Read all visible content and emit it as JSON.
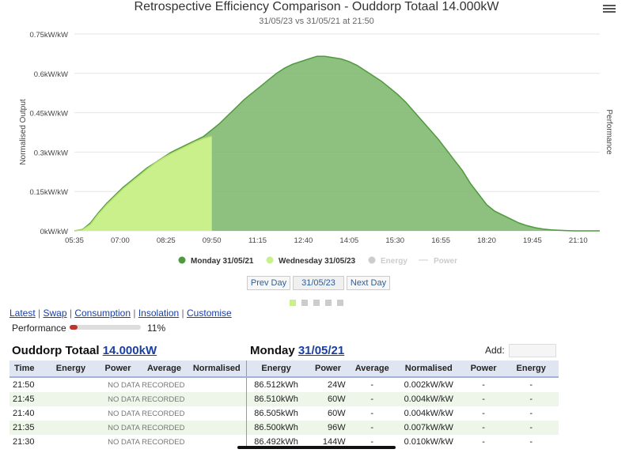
{
  "header": {
    "title": "Retrospective Efficiency Comparison - Ouddorp Totaal 14.000kW",
    "subtitle": "31/05/23 vs 31/05/21 at 21:50"
  },
  "chart_data": {
    "type": "area",
    "ylabel": "Normalised Output",
    "ylabel_right": "Performance",
    "y_ticks": [
      "0kW/kW",
      "0.15kW/kW",
      "0.3kW/kW",
      "0.45kW/kW",
      "0.6kW/kW",
      "0.75kW/kW"
    ],
    "ylim": [
      0,
      0.75
    ],
    "x_ticks": [
      "05:35",
      "07:00",
      "08:25",
      "09:50",
      "11:15",
      "12:40",
      "14:05",
      "15:30",
      "16:55",
      "18:20",
      "19:45",
      "21:10"
    ],
    "xlim_minutes": [
      335,
      1310
    ],
    "series": [
      {
        "name": "Monday 31/05/21",
        "color": "#7ab56a",
        "x_minutes": [
          335,
          350,
          365,
          380,
          395,
          410,
          425,
          440,
          455,
          470,
          485,
          500,
          515,
          530,
          545,
          560,
          575,
          590,
          605,
          620,
          635,
          650,
          665,
          680,
          695,
          710,
          725,
          740,
          755,
          770,
          785,
          800,
          815,
          830,
          845,
          860,
          875,
          890,
          905,
          920,
          935,
          950,
          965,
          980,
          995,
          1010,
          1025,
          1040,
          1055,
          1070,
          1085,
          1100,
          1115,
          1130,
          1145,
          1160,
          1175,
          1190,
          1205,
          1220,
          1235,
          1250,
          1265,
          1280,
          1295,
          1310
        ],
        "values": [
          0.0,
          0.005,
          0.03,
          0.07,
          0.105,
          0.135,
          0.165,
          0.19,
          0.215,
          0.24,
          0.26,
          0.28,
          0.3,
          0.315,
          0.33,
          0.345,
          0.36,
          0.385,
          0.41,
          0.44,
          0.47,
          0.5,
          0.525,
          0.55,
          0.575,
          0.6,
          0.62,
          0.635,
          0.645,
          0.655,
          0.665,
          0.665,
          0.66,
          0.655,
          0.645,
          0.63,
          0.61,
          0.59,
          0.57,
          0.545,
          0.52,
          0.49,
          0.455,
          0.42,
          0.385,
          0.35,
          0.31,
          0.27,
          0.23,
          0.18,
          0.14,
          0.1,
          0.075,
          0.06,
          0.045,
          0.03,
          0.02,
          0.012,
          0.007,
          0.004,
          0.002,
          0.001,
          0.0,
          0.0,
          0.0,
          0.0
        ]
      },
      {
        "name": "Wednesday 31/05/23",
        "color": "#c9f08a",
        "x_minutes": [
          335,
          350,
          365,
          380,
          395,
          410,
          425,
          440,
          455,
          470,
          485,
          500,
          515,
          530,
          545,
          560,
          575,
          590
        ],
        "values": [
          0.0,
          0.004,
          0.025,
          0.065,
          0.1,
          0.13,
          0.16,
          0.185,
          0.21,
          0.235,
          0.258,
          0.278,
          0.295,
          0.31,
          0.325,
          0.34,
          0.352,
          0.36
        ]
      }
    ],
    "legend": [
      {
        "name": "Monday 31/05/21",
        "color": "#4f9a3d",
        "dimmed": false
      },
      {
        "name": "Wednesday 31/05/23",
        "color": "#c9f08a",
        "dimmed": false
      },
      {
        "name": "Energy",
        "color": "#cccccc",
        "dimmed": true
      },
      {
        "name": "Power",
        "color": "#cccccc",
        "dimmed": true
      }
    ],
    "legend_position": "bottom"
  },
  "nav": {
    "prev_label": "Prev Day",
    "date_value": "31/05/23",
    "next_label": "Next Day"
  },
  "links": [
    "Latest",
    "Swap",
    "Consumption",
    "Insolation",
    "Customise"
  ],
  "performance": {
    "label": "Performance",
    "value_text": "11%",
    "fraction": 0.11,
    "bar_color": "#c0352b"
  },
  "left_section": {
    "title": "Ouddorp Totaal ",
    "link": "14.000kW"
  },
  "right_section": {
    "title": "Monday ",
    "link": "31/05/21"
  },
  "add_label": "Add:",
  "table": {
    "headers": [
      "Time",
      "Energy",
      "Power",
      "Average",
      "Normalised",
      "Energy",
      "Power",
      "Average",
      "Normalised",
      "Power",
      "Energy"
    ],
    "no_data": "NO DATA RECORDED",
    "rows": [
      {
        "time": "21:50",
        "energy": "86.512kWh",
        "power": "24W",
        "average": "-",
        "normalised": "0.002kW/kW",
        "power2": "-",
        "energy2": "-"
      },
      {
        "time": "21:45",
        "energy": "86.510kWh",
        "power": "60W",
        "average": "-",
        "normalised": "0.004kW/kW",
        "power2": "-",
        "energy2": "-"
      },
      {
        "time": "21:40",
        "energy": "86.505kWh",
        "power": "60W",
        "average": "-",
        "normalised": "0.004kW/kW",
        "power2": "-",
        "energy2": "-"
      },
      {
        "time": "21:35",
        "energy": "86.500kWh",
        "power": "96W",
        "average": "-",
        "normalised": "0.007kW/kW",
        "power2": "-",
        "energy2": "-"
      },
      {
        "time": "21:30",
        "energy": "86.492kWh",
        "power": "144W",
        "average": "-",
        "normalised": "0.010kW/kW",
        "power2": "-",
        "energy2": "-"
      }
    ]
  }
}
